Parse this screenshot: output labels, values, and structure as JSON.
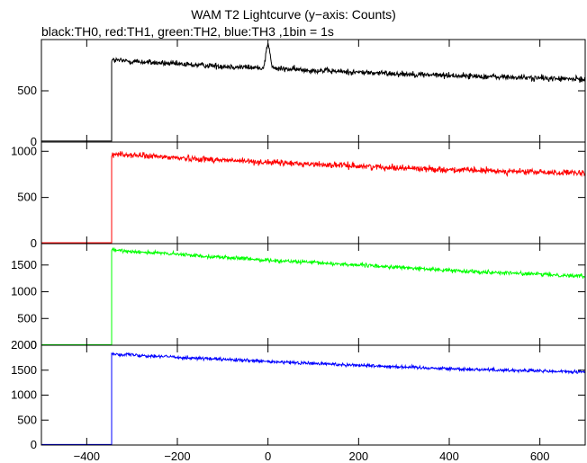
{
  "title": "WAM T2 Lightcurve (y−axis: Counts)",
  "subtitle": "black:TH0, red:TH1, green:TH2, blue:TH3 ,1bin = 1s",
  "chart_data": {
    "type": "line",
    "xlim": [
      -500,
      700
    ],
    "x_ticks": [
      -400,
      -200,
      0,
      200,
      400,
      600
    ],
    "x_tick_labels": [
      "−400",
      "−200",
      "0",
      "200",
      "400",
      "600"
    ],
    "step_time": -345,
    "bin_size_s": 1,
    "panels": [
      {
        "series": "TH0",
        "color": "#000000",
        "ylim": [
          0,
          1000
        ],
        "y_ticks": [
          0,
          500
        ],
        "y_tick_labels": [
          "0",
          "500"
        ],
        "pre_level": 10,
        "profile": [
          [
            -345,
            800
          ],
          [
            -200,
            760
          ],
          [
            0,
            720
          ],
          [
            200,
            680
          ],
          [
            400,
            650
          ],
          [
            700,
            610
          ]
        ],
        "noise": 28,
        "peak": {
          "x": 0,
          "height": 240,
          "width": 6
        }
      },
      {
        "series": "TH1",
        "color": "#ff0000",
        "ylim": [
          0,
          1100
        ],
        "y_ticks": [
          0,
          500,
          1000
        ],
        "y_tick_labels": [
          "0",
          "500",
          "1000"
        ],
        "pre_level": 10,
        "profile": [
          [
            -345,
            970
          ],
          [
            -200,
            930
          ],
          [
            0,
            880
          ],
          [
            200,
            840
          ],
          [
            400,
            800
          ],
          [
            700,
            760
          ]
        ],
        "noise": 32
      },
      {
        "series": "TH2",
        "color": "#00ff00",
        "ylim": [
          0,
          1900
        ],
        "y_ticks": [
          0,
          500,
          1000,
          1500
        ],
        "y_tick_labels": [
          "0",
          "500",
          "1000",
          "1500"
        ],
        "pre_level": 10,
        "profile": [
          [
            -345,
            1780
          ],
          [
            -200,
            1700
          ],
          [
            0,
            1590
          ],
          [
            200,
            1500
          ],
          [
            400,
            1400
          ],
          [
            700,
            1290
          ]
        ],
        "noise": 35
      },
      {
        "series": "TH3",
        "color": "#0000ff",
        "ylim": [
          0,
          2000
        ],
        "y_ticks": [
          0,
          500,
          1000,
          1500,
          2000
        ],
        "y_tick_labels": [
          "0",
          "500",
          "1000",
          "1500",
          "2000"
        ],
        "pre_level": 10,
        "profile": [
          [
            -345,
            1830
          ],
          [
            -200,
            1760
          ],
          [
            0,
            1670
          ],
          [
            200,
            1600
          ],
          [
            400,
            1530
          ],
          [
            700,
            1460
          ]
        ],
        "noise": 35
      }
    ]
  }
}
